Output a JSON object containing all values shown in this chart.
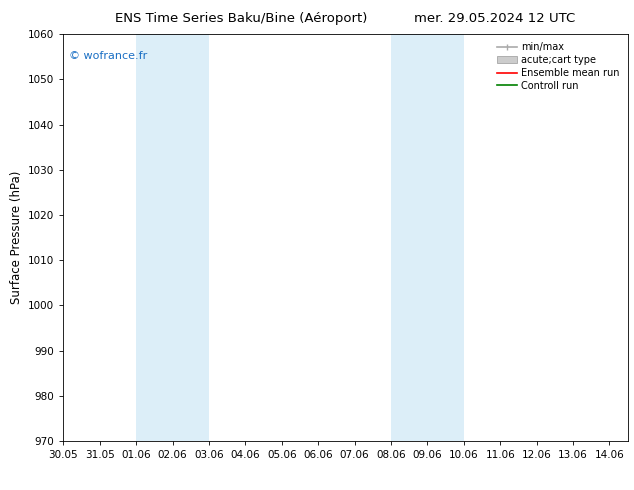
{
  "title_left": "ENS Time Series Baku/Bine (Aéroport)",
  "title_right": "mer. 29.05.2024 12 UTC",
  "ylabel": "Surface Pressure (hPa)",
  "ylim": [
    970,
    1060
  ],
  "yticks": [
    970,
    980,
    990,
    1000,
    1010,
    1020,
    1030,
    1040,
    1050,
    1060
  ],
  "xlim": [
    0,
    15.5
  ],
  "xtick_labels": [
    "30.05",
    "31.05",
    "01.06",
    "02.06",
    "03.06",
    "04.06",
    "05.06",
    "06.06",
    "07.06",
    "08.06",
    "09.06",
    "10.06",
    "11.06",
    "12.06",
    "13.06",
    "14.06"
  ],
  "xtick_positions": [
    0,
    1,
    2,
    3,
    4,
    5,
    6,
    7,
    8,
    9,
    10,
    11,
    12,
    13,
    14,
    15
  ],
  "shaded_bands": [
    {
      "x_start": 2,
      "x_end": 4,
      "color": "#dceef8"
    },
    {
      "x_start": 9,
      "x_end": 11,
      "color": "#dceef8"
    }
  ],
  "watermark_text": "© wofrance.fr",
  "watermark_color": "#1a6fc4",
  "background_color": "#ffffff",
  "legend_items": [
    {
      "label": "min/max",
      "color": "#aaaaaa",
      "lw": 1.2,
      "style": "errorbar"
    },
    {
      "label": "acute;cart type",
      "color": "#cccccc",
      "lw": 5,
      "style": "band"
    },
    {
      "label": "Ensemble mean run",
      "color": "#ff0000",
      "lw": 1.2,
      "style": "line"
    },
    {
      "label": "Controll run",
      "color": "#008000",
      "lw": 1.2,
      "style": "line"
    }
  ],
  "title_fontsize": 9.5,
  "tick_fontsize": 7.5,
  "ylabel_fontsize": 8.5,
  "watermark_fontsize": 8,
  "legend_fontsize": 7
}
